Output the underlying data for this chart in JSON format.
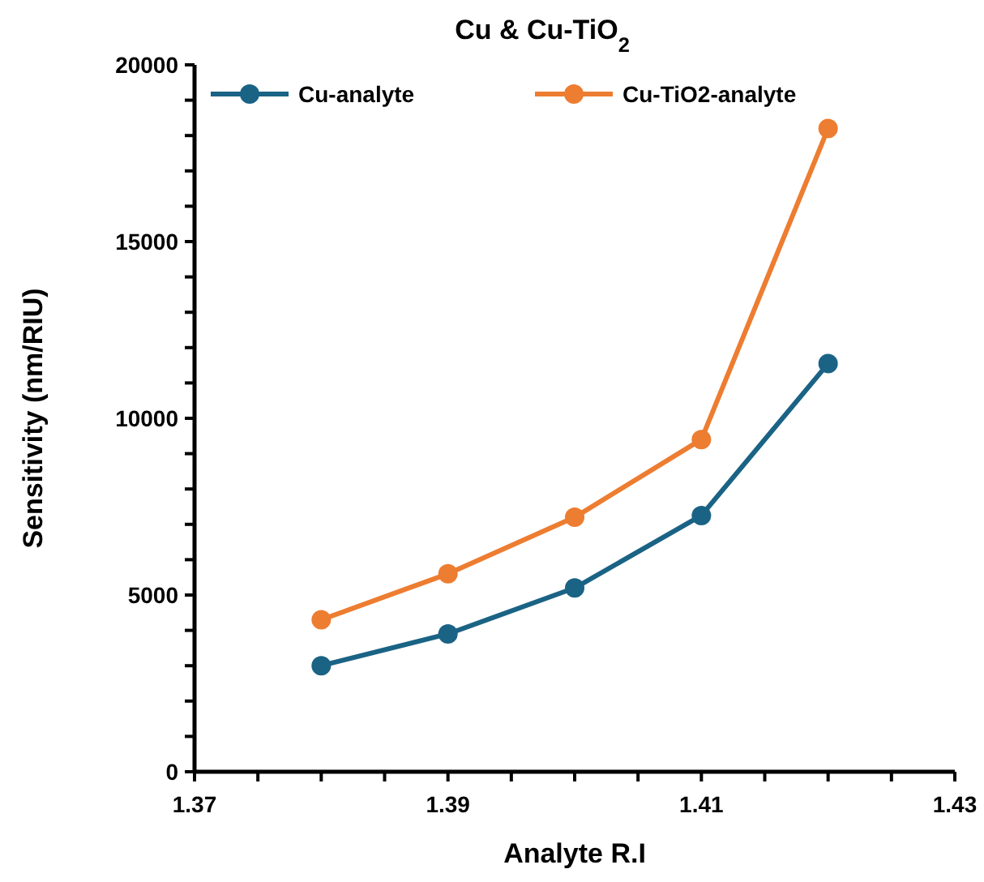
{
  "chart_data": {
    "type": "line",
    "title": "Cu & Cu-TiO$_{2}$",
    "xlabel": "Analyte R.I",
    "ylabel": "Sensitivity (nm/RIU)",
    "x": [
      1.38,
      1.39,
      1.4,
      1.41,
      1.42
    ],
    "series": [
      {
        "name": "Cu-analyte",
        "color": "#1a6385",
        "values": [
          3000,
          3900,
          5200,
          7250,
          11550
        ]
      },
      {
        "name": "Cu-TiO2-analyte",
        "color": "#ed7d31",
        "values": [
          4300,
          5600,
          7200,
          9400,
          18200
        ]
      }
    ],
    "xlim": [
      1.37,
      1.43
    ],
    "xticks": [
      1.37,
      {
        "value": 1.375,
        "label": null
      },
      {
        "value": 1.38,
        "label": null
      },
      {
        "value": 1.385,
        "label": null
      },
      1.39,
      {
        "value": 1.395,
        "label": null
      },
      {
        "value": 1.4,
        "label": null
      },
      {
        "value": 1.405,
        "label": null
      },
      1.41,
      {
        "value": 1.415,
        "label": null
      },
      {
        "value": 1.42,
        "label": null
      },
      {
        "value": 1.425,
        "label": null
      },
      1.43
    ],
    "ylim": [
      0,
      20000
    ],
    "yticks": [
      0,
      {
        "value": 1000,
        "label": null
      },
      {
        "value": 2000,
        "label": null
      },
      {
        "value": 3000,
        "label": null
      },
      {
        "value": 4000,
        "label": null
      },
      5000,
      {
        "value": 6000,
        "label": null
      },
      {
        "value": 7000,
        "label": null
      },
      {
        "value": 8000,
        "label": null
      },
      {
        "value": 9000,
        "label": null
      },
      10000,
      {
        "value": 11000,
        "label": null
      },
      {
        "value": 12000,
        "label": null
      },
      {
        "value": 13000,
        "label": null
      },
      {
        "value": 14000,
        "label": null
      },
      15000,
      {
        "value": 16000,
        "label": null
      },
      {
        "value": 17000,
        "label": null
      },
      {
        "value": 18000,
        "label": null
      },
      {
        "value": 19000,
        "label": null
      },
      20000
    ],
    "grid": false,
    "legend": "top",
    "marker": "circle",
    "line_style": "solid"
  }
}
